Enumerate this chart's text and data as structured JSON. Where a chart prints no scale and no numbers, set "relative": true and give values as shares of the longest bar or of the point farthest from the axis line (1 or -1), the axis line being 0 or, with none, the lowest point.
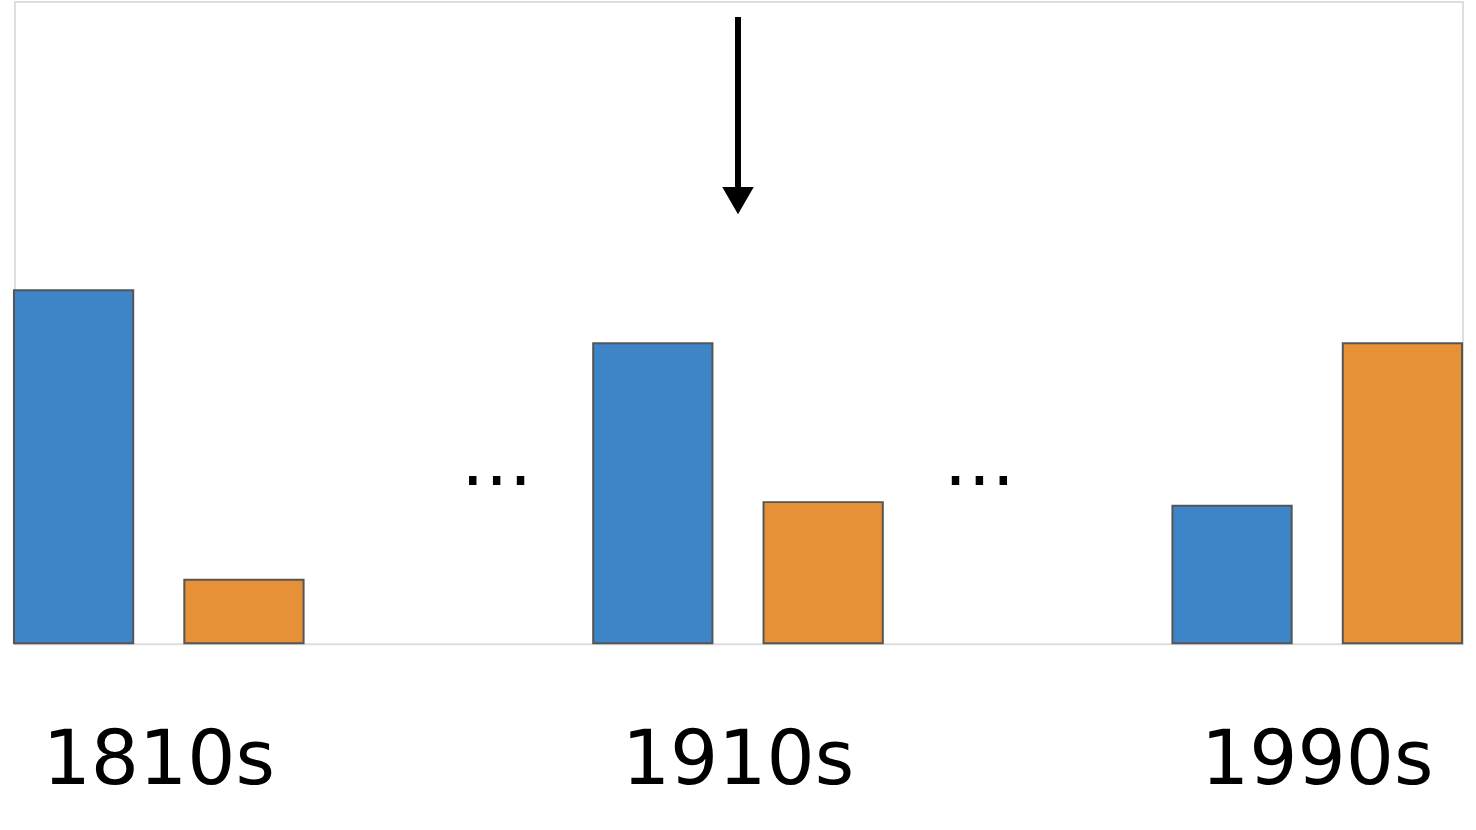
{
  "chart_data": {
    "type": "bar",
    "relative": true,
    "categories": [
      "1810s",
      "1910s",
      "1990s"
    ],
    "series": [
      {
        "color": "#3d85c6",
        "values": [
          1,
          0.85,
          0.39
        ]
      },
      {
        "color": "#e69138",
        "values": [
          0.18,
          0.4,
          0.85
        ]
      }
    ],
    "annotations": [
      "…",
      "…"
    ],
    "grid": false
  }
}
